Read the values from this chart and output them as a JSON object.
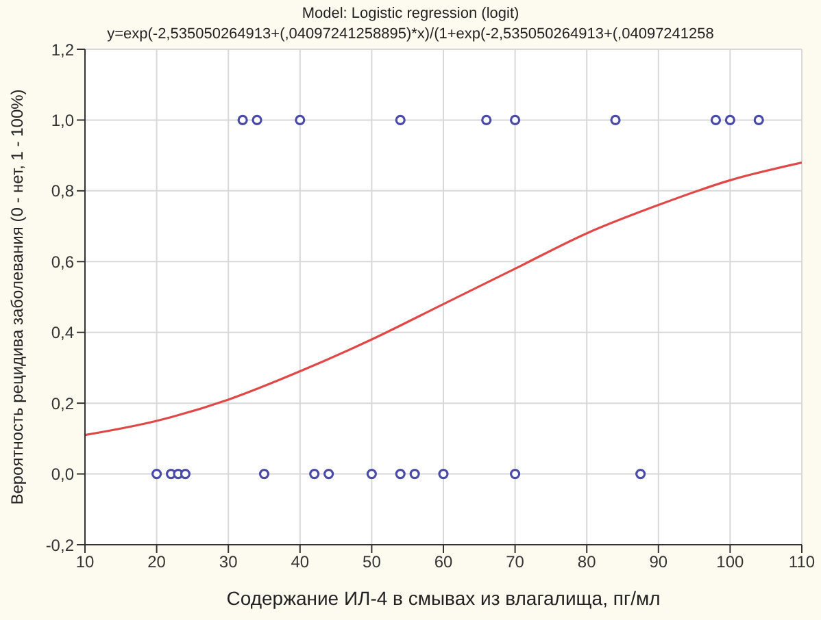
{
  "chart_data": {
    "type": "scatter",
    "title": "Model: Logistic regression (logit)",
    "subtitle": "y=exp(-2,535050264913+(,04097241258895)*x)/(1+exp(-2,535050264913+(,04097241258",
    "xlabel": "Содержание ИЛ-4 в смывах из влагалища, пг/мл",
    "ylabel": "Вероятность рецидива заболевания (0 - нет, 1 - 100%)",
    "xlim": [
      10,
      110
    ],
    "xticks": [
      10,
      20,
      30,
      40,
      50,
      60,
      70,
      80,
      90,
      100,
      110
    ],
    "ylim": [
      -0.2,
      1.2
    ],
    "yticks": [
      {
        "value": -0.2,
        "label": "-0,2"
      },
      {
        "value": 0,
        "label": "0,0"
      },
      {
        "value": 0.2,
        "label": "0,2"
      },
      {
        "value": 0.4,
        "label": "0,4"
      },
      {
        "value": 0.6,
        "label": "0,6"
      },
      {
        "value": 0.8,
        "label": "0,8"
      },
      {
        "value": 1,
        "label": "1,0"
      },
      {
        "value": 1.2,
        "label": "1,2"
      }
    ],
    "grid": true,
    "series": [
      {
        "marker": "circle",
        "color": "#4a4aa8",
        "x": [
          32,
          34,
          40,
          54,
          66,
          70,
          84,
          98,
          100,
          104,
          20,
          22,
          23,
          24,
          35,
          42,
          44,
          50,
          54,
          56,
          60,
          70,
          87.5
        ],
        "values": [
          1,
          1,
          1,
          1,
          1,
          1,
          1,
          1,
          1,
          1,
          0,
          0,
          0,
          0,
          0,
          0,
          0,
          0,
          0,
          0,
          0,
          0,
          0
        ]
      },
      {
        "type": "line",
        "color": "#e04848",
        "x": [
          10,
          20,
          30,
          40,
          50,
          60,
          70,
          80,
          90,
          100,
          110
        ],
        "values": [
          0.11,
          0.15,
          0.21,
          0.29,
          0.38,
          0.48,
          0.58,
          0.68,
          0.76,
          0.83,
          0.88
        ]
      }
    ]
  }
}
